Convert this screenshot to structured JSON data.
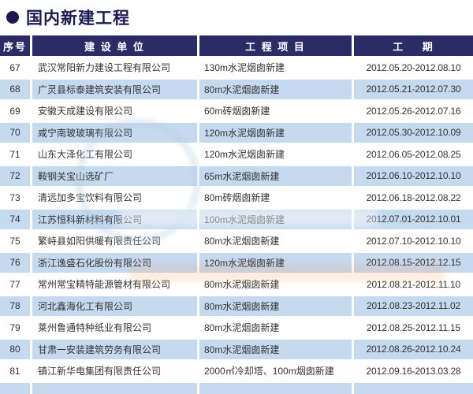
{
  "page": {
    "title": "国内新建工程"
  },
  "table": {
    "headers": [
      "序号",
      "建 设 单 位",
      "工 程 项 目",
      "工    期"
    ],
    "rows": [
      {
        "no": "67",
        "company": "武汉常阳新力建设工程有限公司",
        "project": "130m水泥烟囱新建",
        "period": "2012.05.20-2012.08.10"
      },
      {
        "no": "68",
        "company": "广灵县标泰建筑安装有限公司",
        "project": "80m水泥烟囱新建",
        "period": "2012.05.21-2012.07.30"
      },
      {
        "no": "69",
        "company": "安徽天成建设有限公司",
        "project": "60m砖烟囱新建",
        "period": "2012.05.26-2012.07.16"
      },
      {
        "no": "70",
        "company": "咸宁南玻玻璃有限公司",
        "project": "120m水泥烟囱新建",
        "period": "2012.05.30-2012.10.09"
      },
      {
        "no": "71",
        "company": "山东大泽化工有限公司",
        "project": "120m水泥烟囱新建",
        "period": "2012.06.05-2012.08.25"
      },
      {
        "no": "72",
        "company": "鞍钢关宝山选矿厂",
        "project": "65m水泥烟囱新建",
        "period": "2012.06.10-2012.10.10"
      },
      {
        "no": "73",
        "company": "清远加多宝饮料有限公司",
        "project": "80m砖烟囱新建",
        "period": "2012.06.18-2012.08.22"
      },
      {
        "no": "74",
        "company": "江苏恒科新材料有限公司",
        "project": "100m水泥烟囱新建",
        "period": "2012.07.01-2012.10.01"
      },
      {
        "no": "75",
        "company": "繁峙县如阳供暖有限责任公司",
        "project": "80m水泥烟囱新建",
        "period": "2012.07.10-2012.10.10"
      },
      {
        "no": "76",
        "company": "浙江逸盛石化股份有限公司",
        "project": "120m水泥烟囱新建",
        "period": "2012.08.15-2012.12.15"
      },
      {
        "no": "77",
        "company": "常州常宝精特能源管材有限公司",
        "project": "80m水泥烟囱新建",
        "period": "2012.08.21-2012.11.10"
      },
      {
        "no": "78",
        "company": "河北鑫海化工有限公司",
        "project": "80m水泥烟囱新建",
        "period": "2012.08.23-2012.11.02"
      },
      {
        "no": "79",
        "company": "莱州鲁通特种纸业有限公司",
        "project": "80m水泥烟囱新建",
        "period": "2012.08.25-2012.11.15"
      },
      {
        "no": "80",
        "company": "甘肃一安装建筑劳务有限公司",
        "project": "80m水泥烟囱新建",
        "period": "2012.08.26-2012.10.24"
      },
      {
        "no": "81",
        "company": "镇江新华电集团有限责任公司",
        "project": "2000㎡冷却塔、100m烟囱新建",
        "period": "2012.09.16-2013.03.28"
      }
    ]
  },
  "colors": {
    "navy_header": "#2b2b66",
    "navy_title": "#1b1b52",
    "row_alt_blue": "#c5d9ef",
    "row_text": "#333333"
  }
}
